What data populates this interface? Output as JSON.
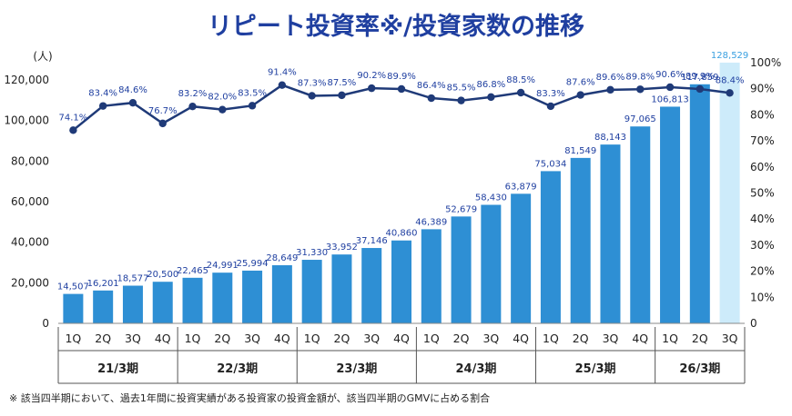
{
  "title": "リピート投資率※/投資家数の推移",
  "left_axis_unit": "(人)",
  "footnote": "※ 該当四半期において、過去1年間に投資実績がある投資家の投資金額が、該当四半期のGMVに占める割合",
  "colors": {
    "title": "#1f3fa0",
    "bar": "#2e8fd4",
    "bar_highlight": "#cdebfa",
    "line": "#1f3a78",
    "label": "#1f3fa0",
    "highlight_label": "#3aa0e0",
    "grid": "#dddddd"
  },
  "chart_data": {
    "type": "bar",
    "categories": [
      "1Q",
      "2Q",
      "3Q",
      "4Q",
      "1Q",
      "2Q",
      "3Q",
      "4Q",
      "1Q",
      "2Q",
      "3Q",
      "4Q",
      "1Q",
      "2Q",
      "3Q",
      "4Q",
      "1Q",
      "2Q",
      "3Q",
      "4Q",
      "1Q",
      "2Q",
      "3Q"
    ],
    "fiscal_years": [
      {
        "label": "21/3期",
        "count": 4
      },
      {
        "label": "22/3期",
        "count": 4
      },
      {
        "label": "23/3期",
        "count": 4
      },
      {
        "label": "24/3期",
        "count": 4
      },
      {
        "label": "25/3期",
        "count": 4
      },
      {
        "label": "26/3期",
        "count": 3
      }
    ],
    "series": [
      {
        "type": "bar",
        "axis": "left",
        "values": [
          14507,
          16201,
          18577,
          20500,
          22465,
          24991,
          25994,
          28649,
          31330,
          33952,
          37146,
          40860,
          46389,
          52679,
          58430,
          63879,
          75034,
          81549,
          88143,
          97065,
          106813,
          117859,
          128529
        ],
        "labels": [
          "14,507",
          "16,201",
          "18,577",
          "20,500",
          "22,465",
          "24,991",
          "25,994",
          "28,649",
          "31,330",
          "33,952",
          "37,146",
          "40,860",
          "46,389",
          "52,679",
          "58,430",
          "63,879",
          "75,034",
          "81,549",
          "88,143",
          "97,065",
          "106,813",
          "117,859",
          "128,529"
        ],
        "highlight_index": 22
      },
      {
        "type": "line",
        "axis": "right",
        "values": [
          74.1,
          83.4,
          84.6,
          76.7,
          83.2,
          82.0,
          83.5,
          91.4,
          87.3,
          87.5,
          90.2,
          89.9,
          86.4,
          85.5,
          86.8,
          88.5,
          83.3,
          87.6,
          89.6,
          89.8,
          90.6,
          89.9,
          88.4
        ],
        "labels": [
          "74.1%",
          "83.4%",
          "84.6%",
          "76.7%",
          "83.2%",
          "82.0%",
          "83.5%",
          "91.4%",
          "87.3%",
          "87.5%",
          "90.2%",
          "89.9%",
          "86.4%",
          "85.5%",
          "86.8%",
          "88.5%",
          "83.3%",
          "87.6%",
          "89.6%",
          "89.8%",
          "90.6%",
          "89.9%",
          "88.4%"
        ]
      }
    ],
    "left_axis": {
      "min": 0,
      "max": 120000,
      "ticks": [
        0,
        20000,
        40000,
        60000,
        80000,
        100000,
        120000
      ],
      "tick_labels": [
        "0",
        "20,000",
        "40,000",
        "60,000",
        "80,000",
        "100,000",
        "120,000"
      ]
    },
    "right_axis": {
      "min": 0,
      "max": 100,
      "ticks": [
        0,
        10,
        20,
        30,
        40,
        50,
        60,
        70,
        80,
        90,
        100
      ],
      "tick_labels": [
        "0",
        "10%",
        "20%",
        "30%",
        "40%",
        "50%",
        "60%",
        "70%",
        "80%",
        "90%",
        "100%"
      ]
    },
    "grid": false,
    "legend": "none"
  }
}
